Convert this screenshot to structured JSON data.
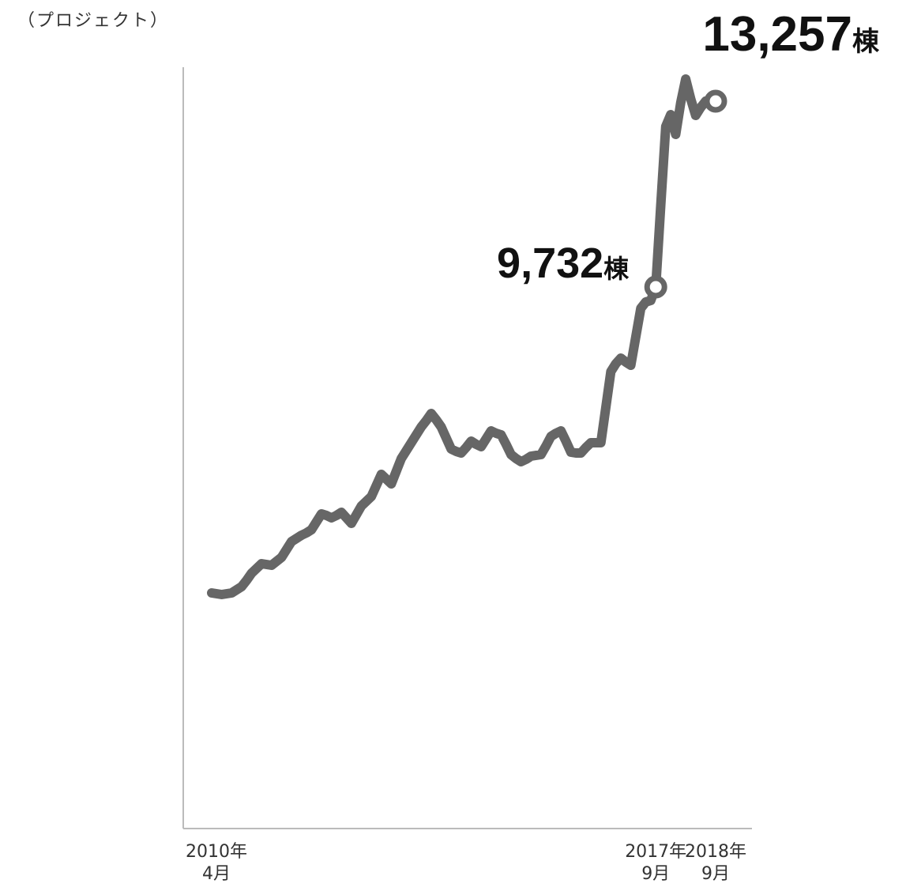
{
  "chart_data": {
    "type": "line",
    "y_label": "（プロジェクト）",
    "label_unit": "棟",
    "color": "#666666",
    "ylim": [
      -543,
      13902
    ],
    "categories": [
      "2010年\n4月",
      null,
      null,
      null,
      null,
      null,
      null,
      null,
      null,
      null,
      null,
      null,
      null,
      null,
      null,
      null,
      null,
      null,
      null,
      null,
      null,
      null,
      null,
      null,
      null,
      null,
      null,
      null,
      null,
      null,
      null,
      null,
      null,
      null,
      null,
      null,
      null,
      null,
      null,
      null,
      null,
      null,
      null,
      null,
      null,
      null,
      null,
      null,
      null,
      null,
      null,
      null,
      null,
      null,
      null,
      null,
      null,
      null,
      null,
      null,
      null,
      null,
      null,
      null,
      null,
      null,
      null,
      null,
      null,
      null,
      null,
      null,
      null,
      null,
      null,
      null,
      null,
      null,
      null,
      null,
      null,
      null,
      null,
      null,
      null,
      null,
      null,
      null,
      null,
      "2017年\n9月",
      null,
      null,
      null,
      null,
      null,
      null,
      null,
      null,
      null,
      null,
      null,
      "2018年\n9月"
    ],
    "values": [
      3927,
      3912,
      3897,
      3912,
      3927,
      3987,
      4047,
      4167,
      4302,
      4392,
      4482,
      4467,
      4452,
      4527,
      4602,
      4752,
      4902,
      4962,
      5022,
      5067,
      5127,
      5277,
      5427,
      5397,
      5352,
      5397,
      5457,
      5352,
      5247,
      5412,
      5577,
      5667,
      5757,
      5967,
      6177,
      6087,
      5997,
      6237,
      6477,
      6627,
      6777,
      6927,
      7077,
      7197,
      7332,
      7212,
      7077,
      6867,
      6657,
      6612,
      6582,
      6687,
      6807,
      6747,
      6702,
      6852,
      7002,
      6957,
      6927,
      6747,
      6552,
      6477,
      6417,
      6462,
      6522,
      6537,
      6552,
      6717,
      6897,
      6957,
      7002,
      6807,
      6597,
      6582,
      6582,
      6687,
      6777,
      6777,
      6777,
      7452,
      8127,
      8277,
      8382,
      8307,
      8247,
      8787,
      9327,
      9447,
      9477,
      9732,
      11277,
      12777,
      13002,
      12627,
      13227,
      13677,
      13302,
      12987,
      13137,
      13257,
      13227,
      13257
    ],
    "value_labels": [
      null,
      null,
      null,
      null,
      null,
      null,
      null,
      null,
      null,
      null,
      null,
      null,
      null,
      null,
      null,
      null,
      null,
      null,
      null,
      null,
      null,
      null,
      null,
      null,
      null,
      null,
      null,
      null,
      null,
      null,
      null,
      null,
      null,
      null,
      null,
      null,
      null,
      null,
      null,
      null,
      null,
      null,
      null,
      null,
      null,
      null,
      null,
      null,
      null,
      null,
      null,
      null,
      null,
      null,
      null,
      null,
      null,
      null,
      null,
      null,
      null,
      null,
      null,
      null,
      null,
      null,
      null,
      null,
      null,
      null,
      null,
      null,
      null,
      null,
      null,
      null,
      null,
      null,
      null,
      null,
      null,
      null,
      null,
      null,
      null,
      null,
      null,
      null,
      null,
      "9,732",
      null,
      null,
      null,
      null,
      null,
      null,
      null,
      null,
      null,
      null,
      null,
      "13,257"
    ]
  }
}
